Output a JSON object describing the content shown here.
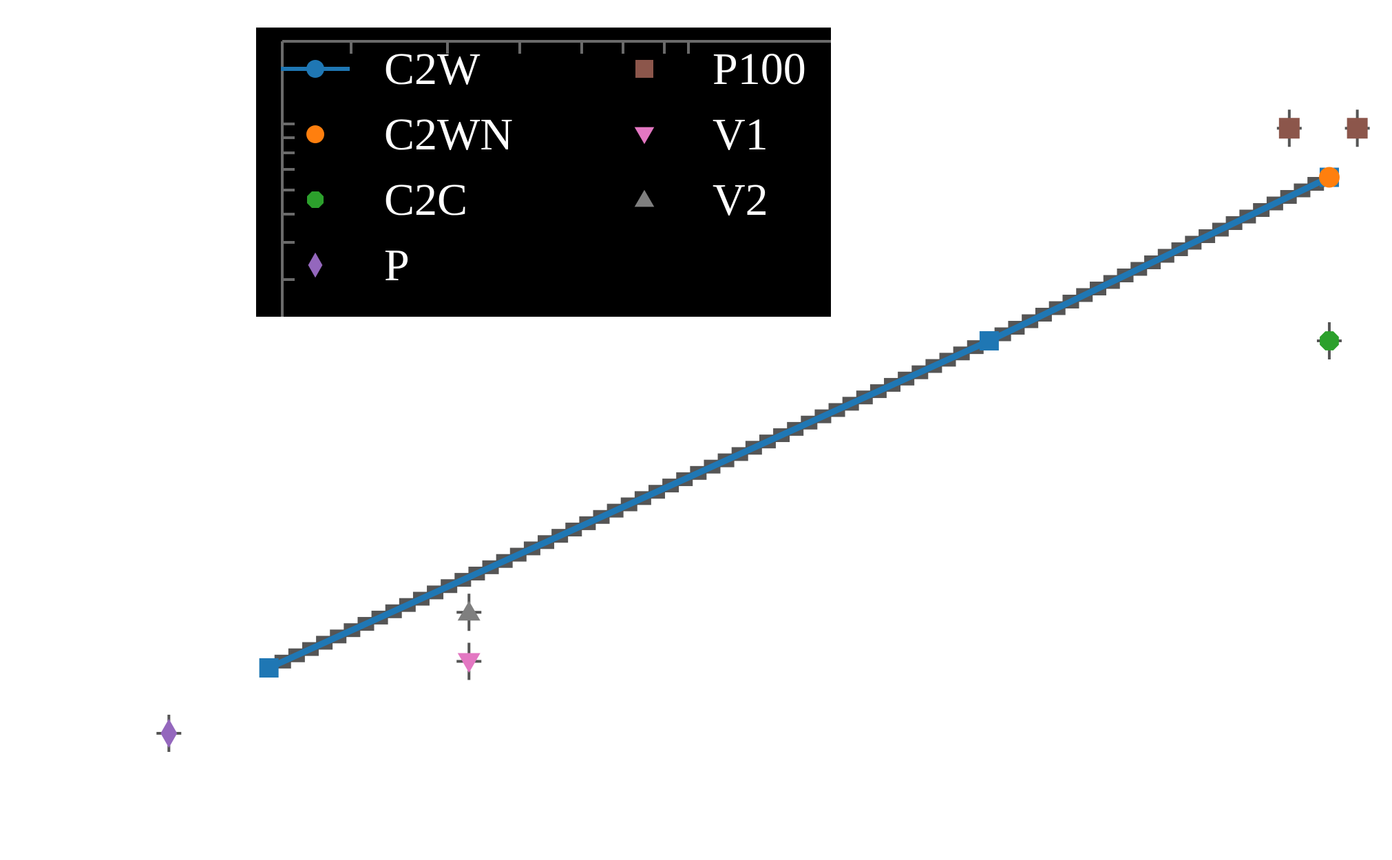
{
  "chart_data": {
    "type": "scatter",
    "title": "",
    "xlabel": "",
    "ylabel": "",
    "xlim": [
      0.5,
      3.7
    ],
    "ylim": [
      0.2,
      2.6
    ],
    "grid": false,
    "legend": {
      "position": "upper-left",
      "columns": 2
    },
    "colors": {
      "C2W": "#1f77b4",
      "C2WN": "#ff7f0e",
      "C2C": "#2ca02c",
      "P": "#9467bd",
      "P100": "#8c564b",
      "V1": "#e377c2",
      "V2": "#7f7f7f",
      "legend_bg": "#000000",
      "legend_text": "#ffffff",
      "errorbar": "#555555"
    },
    "series": [
      {
        "name": "C2W",
        "marker": "square-line",
        "x": [
          1.0,
          2.8,
          3.65
        ],
        "y": [
          0.6,
          1.6,
          2.1
        ]
      },
      {
        "name": "C2WN",
        "marker": "circle",
        "x": [
          3.65
        ],
        "y": [
          2.1
        ]
      },
      {
        "name": "C2C",
        "marker": "octagon",
        "x": [
          3.65
        ],
        "y": [
          1.6
        ]
      },
      {
        "name": "P",
        "marker": "diamond",
        "x": [
          0.75
        ],
        "y": [
          0.4
        ]
      },
      {
        "name": "P100",
        "marker": "square",
        "x": [
          3.55,
          3.72
        ],
        "y": [
          2.25,
          2.25
        ]
      },
      {
        "name": "V1",
        "marker": "triangle-down",
        "x": [
          1.5
        ],
        "y": [
          0.62
        ]
      },
      {
        "name": "V2",
        "marker": "triangle-up",
        "x": [
          1.5
        ],
        "y": [
          0.77
        ]
      }
    ],
    "legend_entries": [
      {
        "label": "C2W",
        "marker": "circle-line"
      },
      {
        "label": "C2WN",
        "marker": "circle"
      },
      {
        "label": "C2C",
        "marker": "octagon"
      },
      {
        "label": "P",
        "marker": "diamond"
      },
      {
        "label": "P100",
        "marker": "square"
      },
      {
        "label": "V1",
        "marker": "triangle-down"
      },
      {
        "label": "V2",
        "marker": "triangle-up"
      }
    ]
  }
}
